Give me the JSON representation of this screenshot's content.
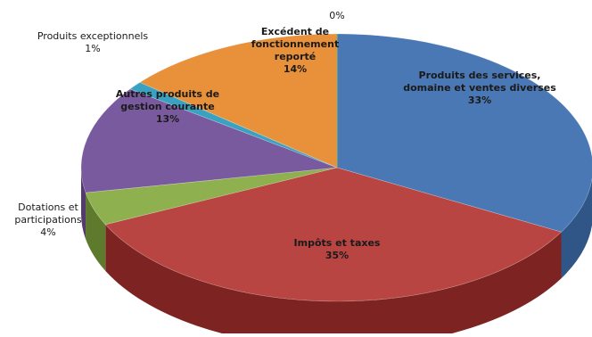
{
  "chart_data": {
    "type": "pie",
    "title": "",
    "legend": "none",
    "slices": [
      {
        "label": "Produits des services, domaine et ventes diverses",
        "label_lines": [
          "Produits des services,",
          "domaine et ventes diverses"
        ],
        "pct_text": "33%",
        "value": 33,
        "color": "#4a78b5",
        "side_color": "#2f5686",
        "label_inside": true
      },
      {
        "label": "Impôts et taxes",
        "label_lines": [
          "Impôts et taxes"
        ],
        "pct_text": "35%",
        "value": 35,
        "color": "#b84542",
        "side_color": "#7d2422",
        "label_inside": true
      },
      {
        "label": "Dotations et participations",
        "label_lines": [
          "Dotations et",
          "participations"
        ],
        "pct_text": "4%",
        "value": 4,
        "color": "#8fb04f",
        "side_color": "#5e7a2c",
        "label_inside": false
      },
      {
        "label": "Autres produits de gestion courante",
        "label_lines": [
          "Autres produits de",
          "gestion courante"
        ],
        "pct_text": "13%",
        "value": 13,
        "color": "#7a5a9e",
        "side_color": "#533a70",
        "label_inside": true
      },
      {
        "label": "Produits exceptionnels",
        "label_lines": [
          "Produits exceptionnels"
        ],
        "pct_text": "1%",
        "value": 1,
        "color": "#3aa2c0",
        "side_color": "#1f6f86",
        "label_inside": false
      },
      {
        "label": "Excédent de fonctionnement reporté",
        "label_lines": [
          "Excédent de",
          "fonctionnement",
          "reporté"
        ],
        "pct_text": "14%",
        "value": 14,
        "color": "#e8913a",
        "side_color": "#a85e17",
        "label_inside": true
      },
      {
        "label": "",
        "label_lines": [],
        "pct_text": "0%",
        "value": 0,
        "color": "#9ab25e",
        "side_color": "#6a7f38",
        "label_inside": false
      }
    ]
  }
}
